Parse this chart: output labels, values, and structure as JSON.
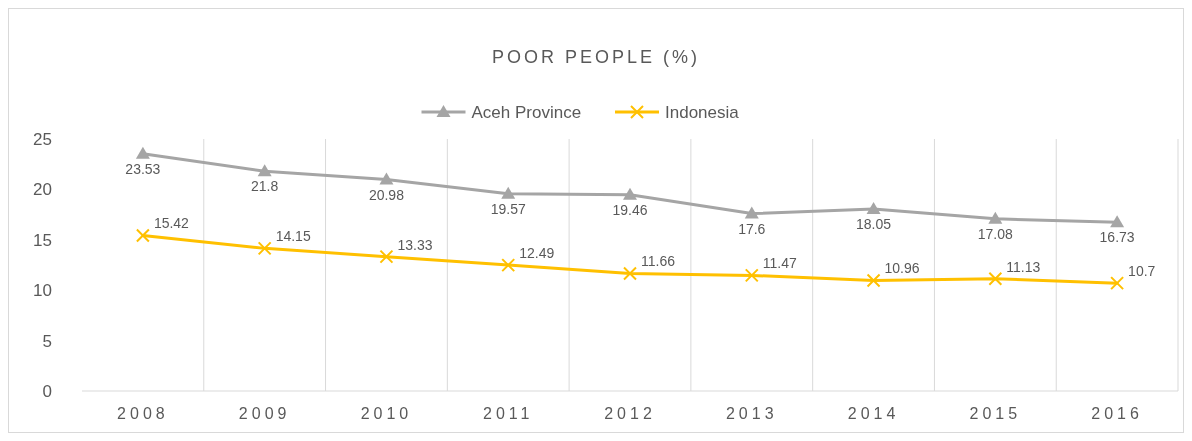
{
  "chart_data": {
    "type": "line",
    "title": "POOR PEOPLE (%)",
    "categories": [
      "2008",
      "2009",
      "2010",
      "2011",
      "2012",
      "2013",
      "2014",
      "2015",
      "2016"
    ],
    "series": [
      {
        "name": "Aceh Province",
        "color": "#a5a5a5",
        "marker": "triangle",
        "values": [
          23.53,
          21.8,
          20.98,
          19.57,
          19.46,
          17.6,
          18.05,
          17.08,
          16.73
        ]
      },
      {
        "name": "Indonesia",
        "color": "#ffc000",
        "marker": "cross",
        "values": [
          15.42,
          14.15,
          13.33,
          12.49,
          11.66,
          11.47,
          10.96,
          11.13,
          10.7
        ]
      }
    ],
    "ylim": [
      0,
      25
    ],
    "yticks": [
      0,
      5,
      10,
      15,
      20,
      25
    ],
    "grid": "x",
    "legend": "top",
    "data_labels": true
  }
}
